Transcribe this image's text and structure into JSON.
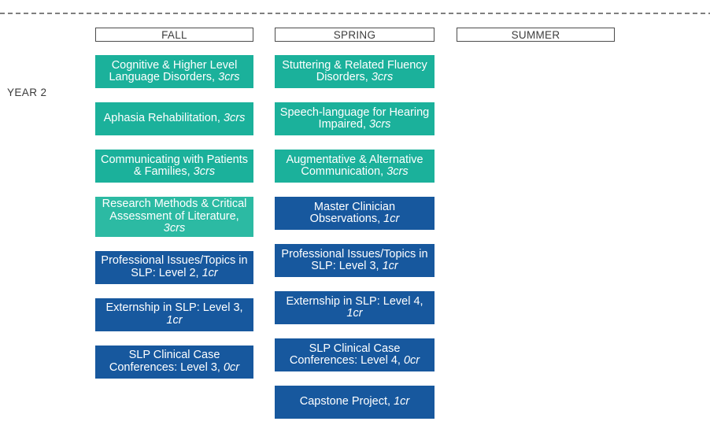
{
  "year_label": "YEAR 2",
  "colors": {
    "teal": "#1BB19B",
    "teal_light": "#2CBAA3",
    "blue": "#17589E"
  },
  "columns": [
    {
      "header": "FALL",
      "courses": [
        {
          "name": "Cognitive & Higher Level Language Disorders,",
          "credits": "3crs",
          "color": "teal"
        },
        {
          "name": "Aphasia Rehabilitation,",
          "credits": "3crs",
          "color": "teal"
        },
        {
          "name": "Communicating with Patients & Families,",
          "credits": "3crs",
          "color": "teal"
        },
        {
          "name": "Research Methods & Critical Assessment of Literature,",
          "credits": "3crs",
          "color": "teal_light"
        },
        {
          "name": "Professional Issues/Topics in SLP: Level 2,",
          "credits": "1cr",
          "color": "blue"
        },
        {
          "name": "Externship in SLP: Level 3,",
          "credits": "1cr",
          "color": "blue"
        },
        {
          "name": "SLP Clinical Case Conferences: Level 3,",
          "credits": "0cr",
          "color": "blue"
        }
      ]
    },
    {
      "header": "SPRING",
      "courses": [
        {
          "name": "Stuttering & Related Fluency Disorders,",
          "credits": "3crs",
          "color": "teal"
        },
        {
          "name": "Speech-language for Hearing Impaired,",
          "credits": "3crs",
          "color": "teal"
        },
        {
          "name": "Augmentative & Alternative Communication,",
          "credits": "3crs",
          "color": "teal"
        },
        {
          "name": "Master Clinician Observations,",
          "credits": "1cr",
          "color": "blue"
        },
        {
          "name": "Professional Issues/Topics in SLP: Level 3,",
          "credits": "1cr",
          "color": "blue"
        },
        {
          "name": "Externship in SLP: Level 4,",
          "credits": "1cr",
          "color": "blue"
        },
        {
          "name": "SLP Clinical Case Conferences: Level 4,",
          "credits": "0cr",
          "color": "blue"
        },
        {
          "name": "Capstone Project,",
          "credits": "1cr",
          "color": "blue"
        }
      ]
    },
    {
      "header": "SUMMER",
      "courses": []
    }
  ]
}
